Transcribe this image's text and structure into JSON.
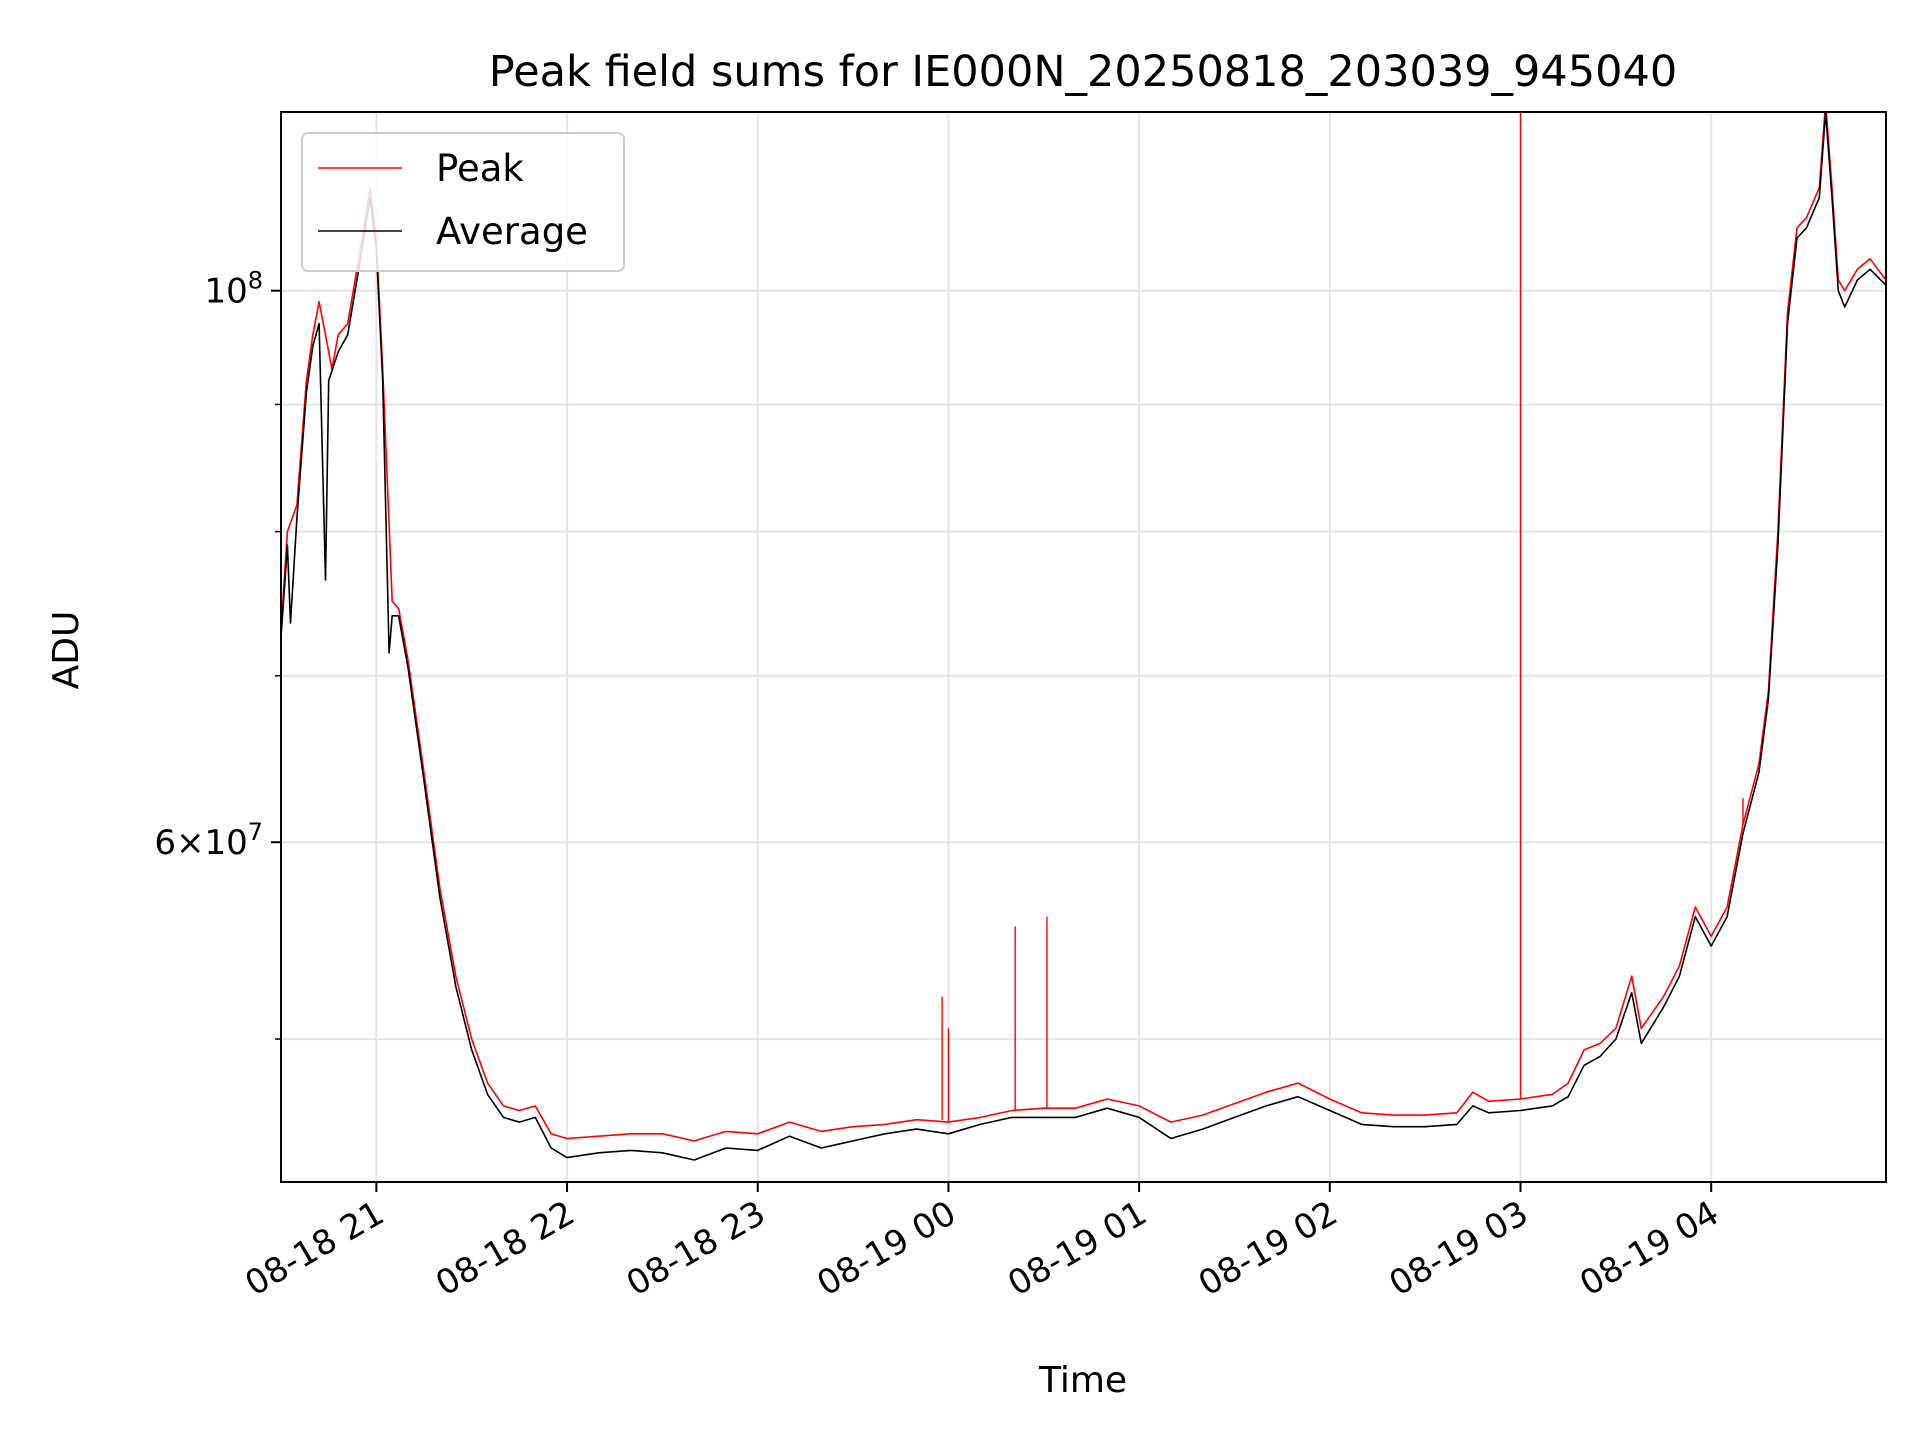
{
  "chart_data": {
    "type": "line",
    "title": "Peak field sums for IE000N_20250818_203039_945040",
    "xlabel": "Time",
    "ylabel": "ADU",
    "yscale": "log",
    "xlim": [
      "2025-08-18 20:30",
      "2025-08-19 04:55"
    ],
    "ylim": [
      43800000,
      118000000
    ],
    "grid": true,
    "legend": "upper-left",
    "x_ticks": [
      "08-18 21",
      "08-18 22",
      "08-18 23",
      "08-19 00",
      "08-19 01",
      "08-19 02",
      "08-19 03",
      "08-19 04"
    ],
    "y_ticks": [
      {
        "value": 100000000,
        "base": "10",
        "exp": "8",
        "mult": ""
      },
      {
        "value": 60000000,
        "base": "10",
        "exp": "7",
        "mult": "6×"
      }
    ],
    "y_minor_ticks": [
      50000000,
      70000000,
      80000000,
      90000000
    ],
    "series": [
      {
        "name": "Peak",
        "color": "#ff0000",
        "points": [
          [
            "2025-08-18 20:30",
            73000000
          ],
          [
            "2025-08-18 20:32",
            80000000
          ],
          [
            "2025-08-18 20:35",
            82000000
          ],
          [
            "2025-08-18 20:38",
            92000000
          ],
          [
            "2025-08-18 20:40",
            96000000
          ],
          [
            "2025-08-18 20:42",
            99000000
          ],
          [
            "2025-08-18 20:44",
            96000000
          ],
          [
            "2025-08-18 20:46",
            93000000
          ],
          [
            "2025-08-18 20:48",
            96000000
          ],
          [
            "2025-08-18 20:51",
            97000000
          ],
          [
            "2025-08-18 20:55",
            104000000
          ],
          [
            "2025-08-18 20:58",
            110000000
          ],
          [
            "2025-08-18 21:00",
            105000000
          ],
          [
            "2025-08-18 21:02",
            93000000
          ],
          [
            "2025-08-18 21:05",
            75000000
          ],
          [
            "2025-08-18 21:07",
            74500000
          ],
          [
            "2025-08-18 21:10",
            71000000
          ],
          [
            "2025-08-18 21:15",
            64000000
          ],
          [
            "2025-08-18 21:20",
            57500000
          ],
          [
            "2025-08-18 21:25",
            53000000
          ],
          [
            "2025-08-18 21:30",
            50000000
          ],
          [
            "2025-08-18 21:35",
            48000000
          ],
          [
            "2025-08-18 21:40",
            47000000
          ],
          [
            "2025-08-18 21:45",
            46800000
          ],
          [
            "2025-08-18 21:50",
            47000000
          ],
          [
            "2025-08-18 21:55",
            45800000
          ],
          [
            "2025-08-18 22:00",
            45600000
          ],
          [
            "2025-08-18 22:10",
            45700000
          ],
          [
            "2025-08-18 22:20",
            45800000
          ],
          [
            "2025-08-18 22:30",
            45800000
          ],
          [
            "2025-08-18 22:40",
            45500000
          ],
          [
            "2025-08-18 22:50",
            45900000
          ],
          [
            "2025-08-18 23:00",
            45800000
          ],
          [
            "2025-08-18 23:10",
            46300000
          ],
          [
            "2025-08-18 23:20",
            45900000
          ],
          [
            "2025-08-18 23:30",
            46100000
          ],
          [
            "2025-08-18 23:40",
            46200000
          ],
          [
            "2025-08-18 23:50",
            46400000
          ],
          [
            "2025-08-19 00:00",
            46300000
          ],
          [
            "2025-08-19 00:10",
            46500000
          ],
          [
            "2025-08-19 00:20",
            46800000
          ],
          [
            "2025-08-19 00:30",
            46900000
          ],
          [
            "2025-08-19 00:40",
            46900000
          ],
          [
            "2025-08-19 00:50",
            47300000
          ],
          [
            "2025-08-19 01:00",
            47000000
          ],
          [
            "2025-08-19 01:10",
            46300000
          ],
          [
            "2025-08-19 01:20",
            46600000
          ],
          [
            "2025-08-19 01:30",
            47100000
          ],
          [
            "2025-08-19 01:40",
            47600000
          ],
          [
            "2025-08-19 01:50",
            48000000
          ],
          [
            "2025-08-19 02:00",
            47300000
          ],
          [
            "2025-08-19 02:10",
            46700000
          ],
          [
            "2025-08-19 02:20",
            46600000
          ],
          [
            "2025-08-19 02:30",
            46600000
          ],
          [
            "2025-08-19 02:40",
            46700000
          ],
          [
            "2025-08-19 02:45",
            47600000
          ],
          [
            "2025-08-19 02:50",
            47200000
          ],
          [
            "2025-08-19 03:00",
            47300000
          ],
          [
            "2025-08-19 03:10",
            47500000
          ],
          [
            "2025-08-19 03:15",
            48000000
          ],
          [
            "2025-08-19 03:20",
            49500000
          ],
          [
            "2025-08-19 03:25",
            49800000
          ],
          [
            "2025-08-19 03:30",
            50500000
          ],
          [
            "2025-08-19 03:35",
            53000000
          ],
          [
            "2025-08-19 03:38",
            50500000
          ],
          [
            "2025-08-19 03:45",
            52000000
          ],
          [
            "2025-08-19 03:50",
            53500000
          ],
          [
            "2025-08-19 03:55",
            56500000
          ],
          [
            "2025-08-19 04:00",
            55000000
          ],
          [
            "2025-08-19 04:05",
            56500000
          ],
          [
            "2025-08-19 04:10",
            61000000
          ],
          [
            "2025-08-19 04:15",
            64500000
          ],
          [
            "2025-08-19 04:18",
            69000000
          ],
          [
            "2025-08-19 04:21",
            80000000
          ],
          [
            "2025-08-19 04:24",
            98000000
          ],
          [
            "2025-08-19 04:27",
            106000000
          ],
          [
            "2025-08-19 04:30",
            107000000
          ],
          [
            "2025-08-19 04:34",
            110000000
          ],
          [
            "2025-08-19 04:36",
            119000000
          ],
          [
            "2025-08-19 04:38",
            110000000
          ],
          [
            "2025-08-19 04:40",
            101000000
          ],
          [
            "2025-08-19 04:42",
            100000000
          ],
          [
            "2025-08-19 04:46",
            102000000
          ],
          [
            "2025-08-19 04:50",
            103000000
          ],
          [
            "2025-08-19 04:55",
            101000000
          ]
        ],
        "spikes": [
          [
            "2025-08-18 23:58",
            52000000
          ],
          [
            "2025-08-19 00:00",
            50500000
          ],
          [
            "2025-08-19 00:21",
            55500000
          ],
          [
            "2025-08-19 00:31",
            56000000
          ],
          [
            "2025-08-19 03:00",
            118000000
          ],
          [
            "2025-08-19 04:10",
            62500000
          ]
        ]
      },
      {
        "name": "Average",
        "color": "#000000",
        "points": [
          [
            "2025-08-18 20:30",
            72500000
          ],
          [
            "2025-08-18 20:32",
            79000000
          ],
          [
            "2025-08-18 20:33",
            73500000
          ],
          [
            "2025-08-18 20:35",
            81000000
          ],
          [
            "2025-08-18 20:38",
            91000000
          ],
          [
            "2025-08-18 20:40",
            95000000
          ],
          [
            "2025-08-18 20:42",
            97000000
          ],
          [
            "2025-08-18 20:44",
            76500000
          ],
          [
            "2025-08-18 20:45",
            92000000
          ],
          [
            "2025-08-18 20:48",
            94500000
          ],
          [
            "2025-08-18 20:51",
            96000000
          ],
          [
            "2025-08-18 20:55",
            103000000
          ],
          [
            "2025-08-18 20:58",
            109000000
          ],
          [
            "2025-08-18 21:00",
            104000000
          ],
          [
            "2025-08-18 21:02",
            92000000
          ],
          [
            "2025-08-18 21:04",
            71500000
          ],
          [
            "2025-08-18 21:05",
            74000000
          ],
          [
            "2025-08-18 21:07",
            74000000
          ],
          [
            "2025-08-18 21:10",
            70500000
          ],
          [
            "2025-08-18 21:15",
            63500000
          ],
          [
            "2025-08-18 21:20",
            57000000
          ],
          [
            "2025-08-18 21:25",
            52500000
          ],
          [
            "2025-08-18 21:30",
            49500000
          ],
          [
            "2025-08-18 21:35",
            47500000
          ],
          [
            "2025-08-18 21:40",
            46500000
          ],
          [
            "2025-08-18 21:45",
            46300000
          ],
          [
            "2025-08-18 21:50",
            46500000
          ],
          [
            "2025-08-18 21:55",
            45200000
          ],
          [
            "2025-08-18 22:00",
            44800000
          ],
          [
            "2025-08-18 22:10",
            45000000
          ],
          [
            "2025-08-18 22:20",
            45100000
          ],
          [
            "2025-08-18 22:30",
            45000000
          ],
          [
            "2025-08-18 22:40",
            44700000
          ],
          [
            "2025-08-18 22:50",
            45200000
          ],
          [
            "2025-08-18 23:00",
            45100000
          ],
          [
            "2025-08-18 23:10",
            45700000
          ],
          [
            "2025-08-18 23:20",
            45200000
          ],
          [
            "2025-08-18 23:30",
            45500000
          ],
          [
            "2025-08-18 23:40",
            45800000
          ],
          [
            "2025-08-18 23:50",
            46000000
          ],
          [
            "2025-08-19 00:00",
            45800000
          ],
          [
            "2025-08-19 00:10",
            46200000
          ],
          [
            "2025-08-19 00:20",
            46500000
          ],
          [
            "2025-08-19 00:30",
            46500000
          ],
          [
            "2025-08-19 00:40",
            46500000
          ],
          [
            "2025-08-19 00:50",
            46900000
          ],
          [
            "2025-08-19 01:00",
            46500000
          ],
          [
            "2025-08-19 01:10",
            45600000
          ],
          [
            "2025-08-19 01:20",
            46000000
          ],
          [
            "2025-08-19 01:30",
            46500000
          ],
          [
            "2025-08-19 01:40",
            47000000
          ],
          [
            "2025-08-19 01:50",
            47400000
          ],
          [
            "2025-08-19 02:00",
            46800000
          ],
          [
            "2025-08-19 02:10",
            46200000
          ],
          [
            "2025-08-19 02:20",
            46100000
          ],
          [
            "2025-08-19 02:30",
            46100000
          ],
          [
            "2025-08-19 02:40",
            46200000
          ],
          [
            "2025-08-19 02:45",
            47000000
          ],
          [
            "2025-08-19 02:50",
            46700000
          ],
          [
            "2025-08-19 03:00",
            46800000
          ],
          [
            "2025-08-19 03:10",
            47000000
          ],
          [
            "2025-08-19 03:15",
            47400000
          ],
          [
            "2025-08-19 03:20",
            48800000
          ],
          [
            "2025-08-19 03:25",
            49200000
          ],
          [
            "2025-08-19 03:30",
            50000000
          ],
          [
            "2025-08-19 03:35",
            52200000
          ],
          [
            "2025-08-19 03:38",
            49800000
          ],
          [
            "2025-08-19 03:45",
            51500000
          ],
          [
            "2025-08-19 03:50",
            53000000
          ],
          [
            "2025-08-19 03:55",
            56000000
          ],
          [
            "2025-08-19 04:00",
            54500000
          ],
          [
            "2025-08-19 04:05",
            56000000
          ],
          [
            "2025-08-19 04:10",
            60500000
          ],
          [
            "2025-08-19 04:15",
            64000000
          ],
          [
            "2025-08-19 04:18",
            68500000
          ],
          [
            "2025-08-19 04:21",
            79000000
          ],
          [
            "2025-08-19 04:24",
            97000000
          ],
          [
            "2025-08-19 04:27",
            105000000
          ],
          [
            "2025-08-19 04:30",
            106000000
          ],
          [
            "2025-08-19 04:34",
            109000000
          ],
          [
            "2025-08-19 04:36",
            118000000
          ],
          [
            "2025-08-19 04:38",
            109000000
          ],
          [
            "2025-08-19 04:40",
            100000000
          ],
          [
            "2025-08-19 04:42",
            98500000
          ],
          [
            "2025-08-19 04:46",
            101000000
          ],
          [
            "2025-08-19 04:50",
            102000000
          ],
          [
            "2025-08-19 04:55",
            100500000
          ]
        ]
      }
    ]
  }
}
